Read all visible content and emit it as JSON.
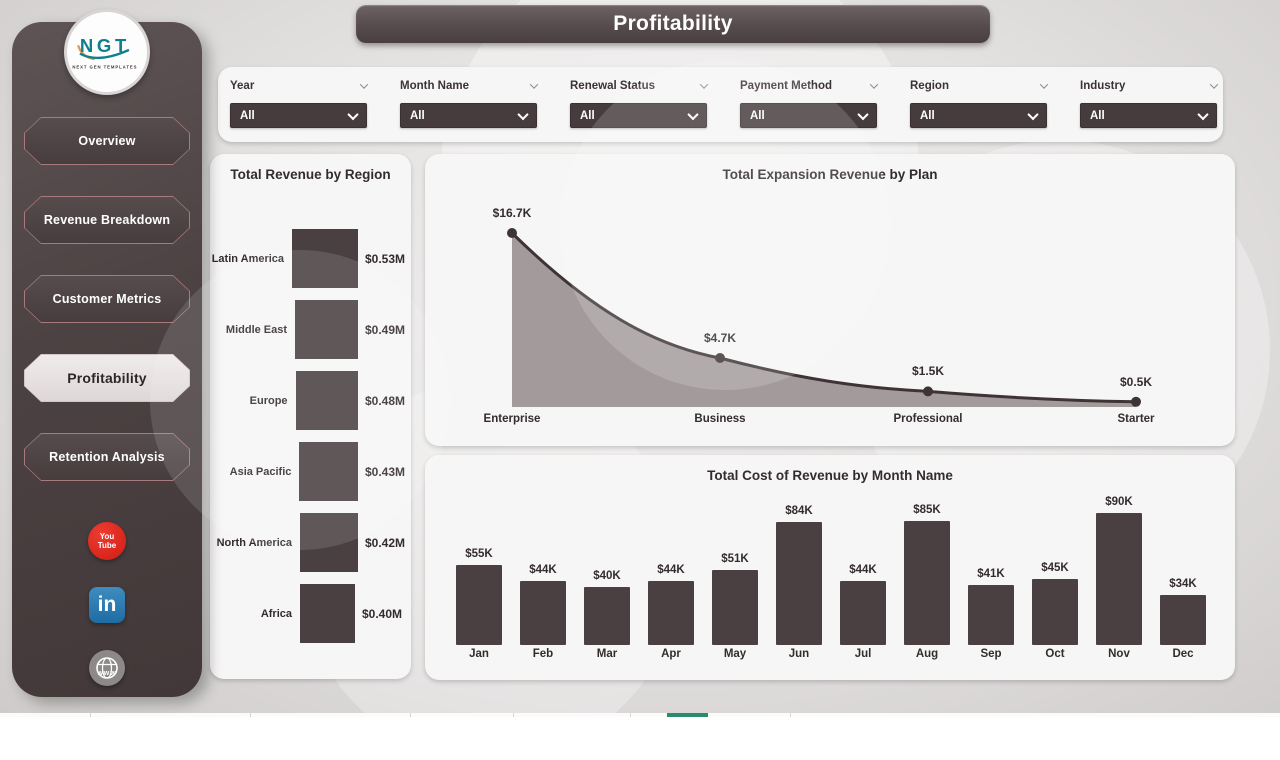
{
  "header": {
    "title": "Profitability"
  },
  "logo": {
    "initials": "NGT",
    "tagline": "NEXT GEN TEMPLATES"
  },
  "sidebar": {
    "items": [
      {
        "label": "Overview",
        "active": false
      },
      {
        "label": "Revenue Breakdown",
        "active": false
      },
      {
        "label": "Customer Metrics",
        "active": false
      },
      {
        "label": "Profitability",
        "active": true
      },
      {
        "label": "Retention Analysis",
        "active": false
      }
    ],
    "social": {
      "youtube_line1": "You",
      "youtube_line2": "Tube",
      "linkedin_label": "in",
      "website_label": "www"
    }
  },
  "filters": [
    {
      "label": "Year",
      "value": "All"
    },
    {
      "label": "Month Name",
      "value": "All"
    },
    {
      "label": "Renewal Status",
      "value": "All"
    },
    {
      "label": "Payment Method",
      "value": "All"
    },
    {
      "label": "Region",
      "value": "All"
    },
    {
      "label": "Industry",
      "value": "All"
    }
  ],
  "chart_data": [
    {
      "type": "bar",
      "orientation": "horizontal",
      "title": "Total Revenue by Region",
      "categories": [
        "Latin America",
        "Middle East",
        "Europe",
        "Asia Pacific",
        "North America",
        "Africa"
      ],
      "values": [
        0.53,
        0.49,
        0.48,
        0.43,
        0.42,
        0.4
      ],
      "labels": [
        "$0.53M",
        "$0.49M",
        "$0.48M",
        "$0.43M",
        "$0.42M",
        "$0.40M"
      ],
      "unit": "USD millions",
      "grid": false
    },
    {
      "type": "area",
      "title": "Total Expansion Revenue by Plan",
      "categories": [
        "Enterprise",
        "Business",
        "Professional",
        "Starter"
      ],
      "values": [
        16.7,
        4.7,
        1.5,
        0.5
      ],
      "labels": [
        "$16.7K",
        "$4.7K",
        "$1.5K",
        "$0.5K"
      ],
      "unit": "USD thousands",
      "ylim": [
        0,
        18
      ],
      "grid": false
    },
    {
      "type": "bar",
      "orientation": "vertical",
      "title": "Total Cost of Revenue by Month Name",
      "categories": [
        "Jan",
        "Feb",
        "Mar",
        "Apr",
        "May",
        "Jun",
        "Jul",
        "Aug",
        "Sep",
        "Oct",
        "Nov",
        "Dec"
      ],
      "values": [
        55,
        44,
        40,
        44,
        51,
        84,
        44,
        85,
        41,
        45,
        90,
        34
      ],
      "labels": [
        "$55K",
        "$44K",
        "$40K",
        "$44K",
        "$51K",
        "$84K",
        "$44K",
        "$85K",
        "$41K",
        "$45K",
        "$90K",
        "$34K"
      ],
      "unit": "USD thousands",
      "ylim": [
        0,
        100
      ],
      "grid": false
    }
  ],
  "colors": {
    "sidebar": "#4c4243",
    "panel": "#f7f6f6",
    "bar": "#4a4041",
    "line": "#3f3435",
    "area_fill": "#a39b9b",
    "nav_border": "#a8797d",
    "active_nav": "#eae5e5",
    "dropdown": "#463c3d",
    "youtube_red": "#d92a20",
    "linkedin_blue": "#2d76b0",
    "website_gray": "#8d8988",
    "footer_active_tab": "#2b8a70",
    "logo_teal": "#0f7f8e",
    "logo_orange": "#d99a4e"
  }
}
